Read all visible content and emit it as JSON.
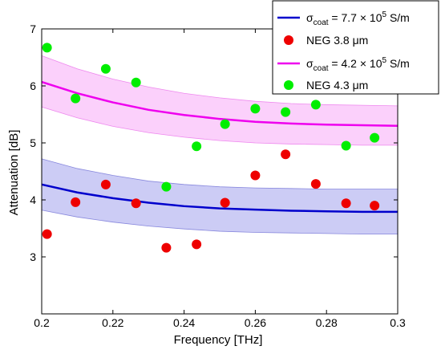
{
  "chart_data": {
    "type": "scatter",
    "xlabel": "Frequency [THz]",
    "ylabel": "Attenuation [dB]",
    "xlim": [
      0.2,
      0.3
    ],
    "ylim": [
      2,
      7
    ],
    "x_ticks": [
      "0.2",
      "0.22",
      "0.24",
      "0.26",
      "0.28",
      "0.3"
    ],
    "x_tick_values": [
      0.2,
      0.22,
      0.24,
      0.26,
      0.28,
      0.3
    ],
    "y_ticks": [
      "3",
      "4",
      "5",
      "6",
      "7"
    ],
    "y_tick_values": [
      3,
      4,
      5,
      6,
      7
    ],
    "grid": false,
    "legend_placement": "top-right",
    "legend": [
      {
        "kind": "line",
        "pre": "σ",
        "sub": "coat",
        "mid": " = 7.7 × 10",
        "sup": "5",
        "post": " S/m",
        "color": "#0000cc"
      },
      {
        "kind": "marker",
        "label": "NEG 3.8 μm",
        "color": "#ee0000"
      },
      {
        "kind": "line",
        "pre": "σ",
        "sub": "coat",
        "mid": " = 4.2 × 10",
        "sup": "5",
        "post": " S/m",
        "color": "#ee00ee"
      },
      {
        "kind": "marker",
        "label": "NEG 4.3 μm",
        "color": "#00ee00"
      }
    ],
    "curves": [
      {
        "color": "#0000cc",
        "band_fill": "#ccccf5",
        "band_stroke": "#8888dd",
        "x": [
          0.2,
          0.21,
          0.22,
          0.23,
          0.24,
          0.25,
          0.26,
          0.27,
          0.28,
          0.29,
          0.3
        ],
        "y": [
          4.27,
          4.13,
          4.03,
          3.95,
          3.89,
          3.85,
          3.83,
          3.81,
          3.8,
          3.79,
          3.79
        ],
        "band_upper": [
          4.72,
          4.55,
          4.43,
          4.33,
          4.27,
          4.23,
          4.21,
          4.2,
          4.19,
          4.19,
          4.19
        ],
        "band_lower": [
          3.82,
          3.7,
          3.61,
          3.54,
          3.49,
          3.45,
          3.43,
          3.42,
          3.41,
          3.4,
          3.4
        ]
      },
      {
        "color": "#ee00ee",
        "band_fill": "#fbd0fb",
        "band_stroke": "#ee88ee",
        "x": [
          0.2,
          0.21,
          0.22,
          0.23,
          0.24,
          0.25,
          0.26,
          0.27,
          0.28,
          0.29,
          0.3
        ],
        "y": [
          6.07,
          5.87,
          5.71,
          5.58,
          5.49,
          5.42,
          5.37,
          5.34,
          5.32,
          5.31,
          5.3
        ],
        "band_upper": [
          6.53,
          6.3,
          6.12,
          5.98,
          5.87,
          5.79,
          5.73,
          5.69,
          5.67,
          5.66,
          5.65
        ],
        "band_lower": [
          5.63,
          5.44,
          5.29,
          5.18,
          5.1,
          5.04,
          5.0,
          4.98,
          4.97,
          4.96,
          4.96
        ]
      }
    ],
    "series": [
      {
        "name": "NEG 3.8 μm",
        "color": "#ee0000",
        "x": [
          0.2015,
          0.2095,
          0.218,
          0.2265,
          0.235,
          0.2435,
          0.2515,
          0.26,
          0.2685,
          0.277,
          0.2855,
          0.2935
        ],
        "y": [
          3.4,
          3.96,
          4.27,
          3.94,
          3.16,
          3.22,
          3.95,
          4.43,
          4.8,
          4.28,
          3.94,
          3.9
        ]
      },
      {
        "name": "NEG 4.3 μm",
        "color": "#00ee00",
        "x": [
          0.2015,
          0.2095,
          0.218,
          0.2265,
          0.235,
          0.2435,
          0.2515,
          0.26,
          0.2685,
          0.277,
          0.2855,
          0.2935
        ],
        "y": [
          6.67,
          5.78,
          6.3,
          6.06,
          4.23,
          4.94,
          5.33,
          5.6,
          5.54,
          5.67,
          4.95,
          5.09
        ]
      }
    ]
  }
}
